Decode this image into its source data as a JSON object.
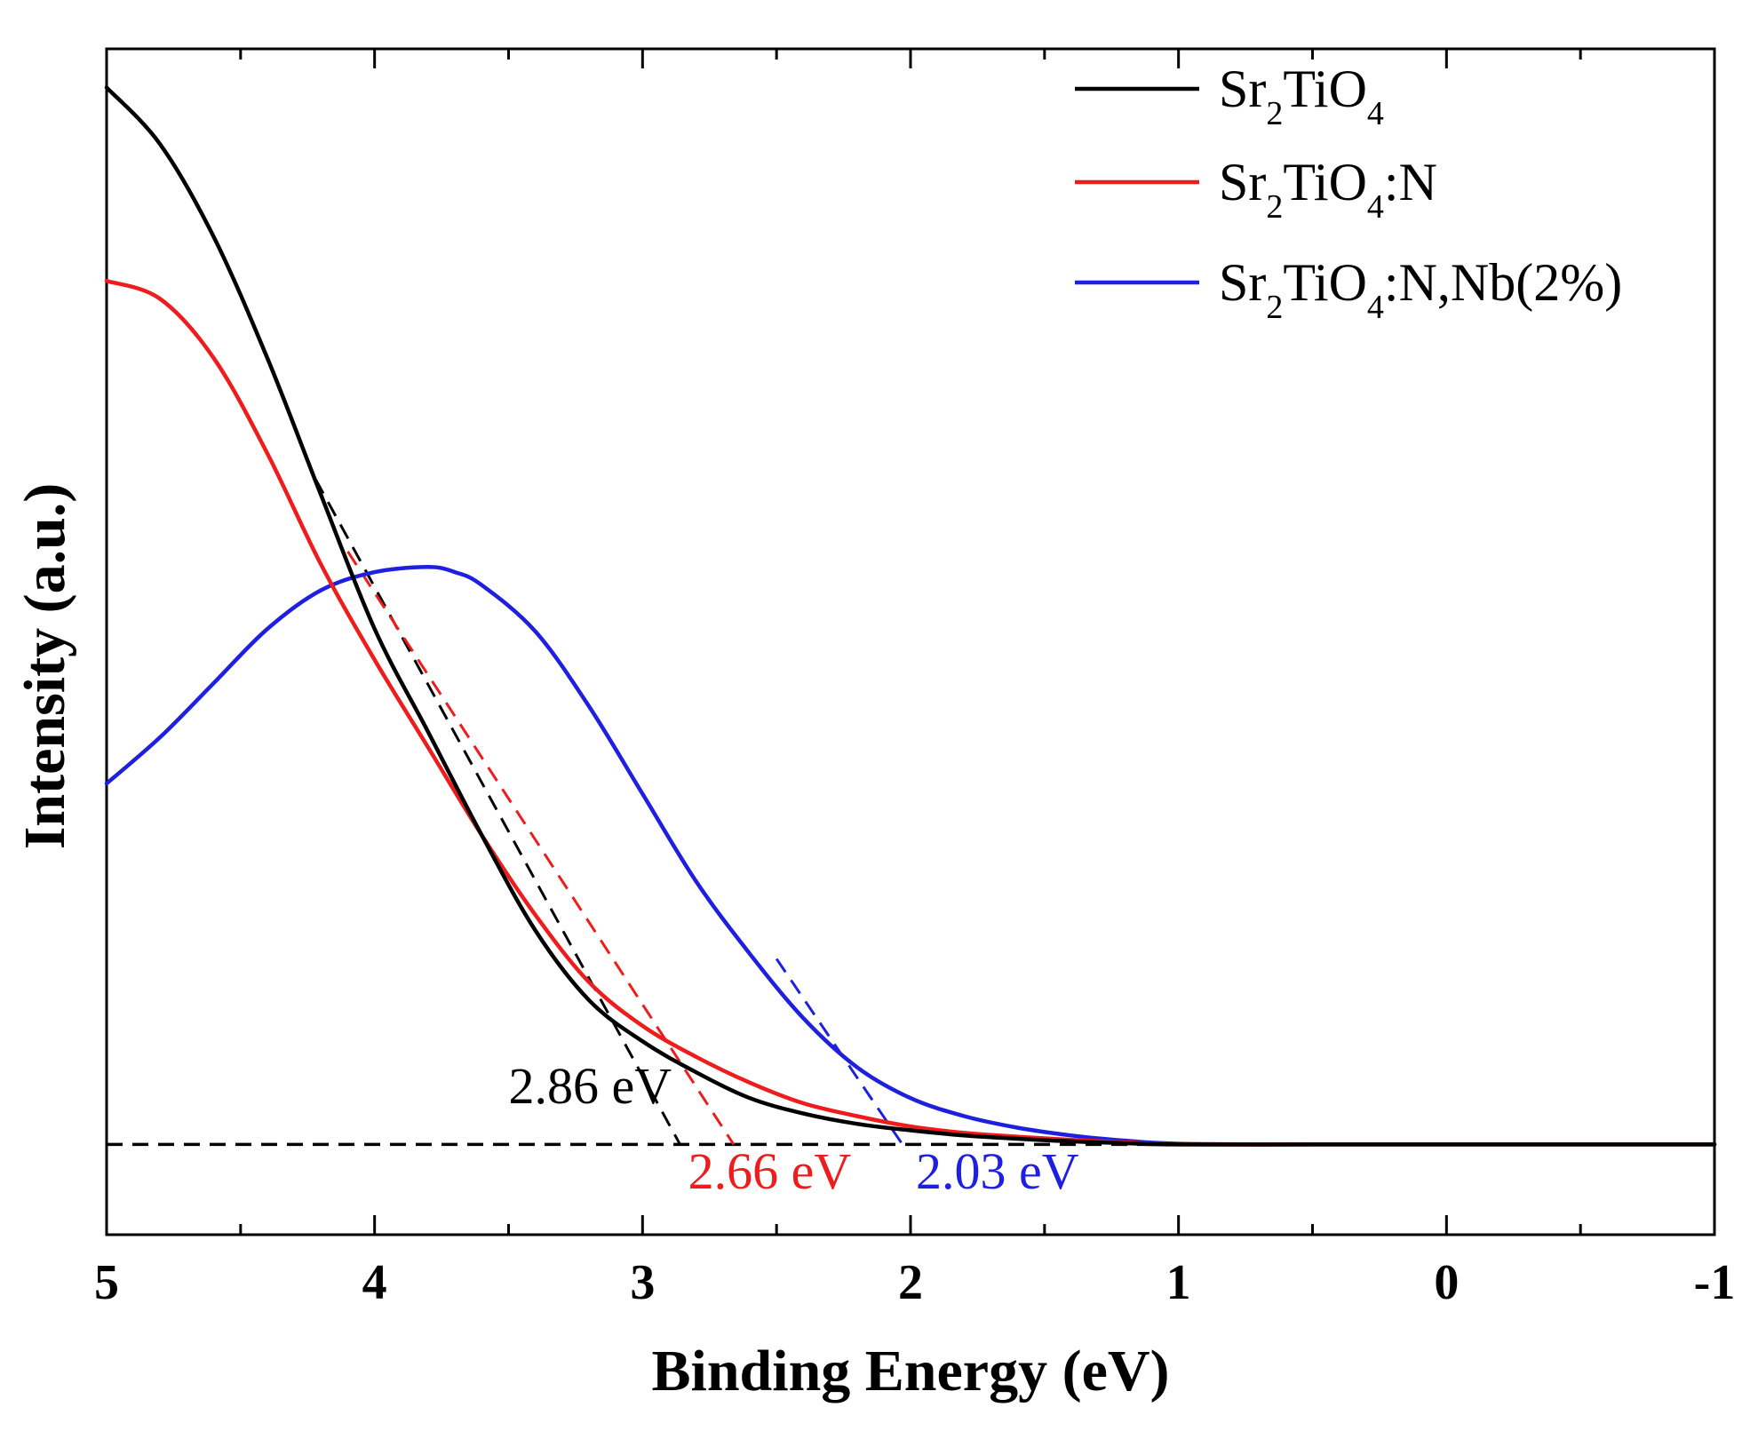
{
  "chart_data": {
    "type": "line",
    "title": "",
    "xlabel": "Binding Energy (eV)",
    "ylabel": "Intensity (a.u.)",
    "xlim": [
      5,
      -1
    ],
    "ylim": [
      -0.35,
      4.25
    ],
    "x_reversed": true,
    "y_ticks_shown": false,
    "grid": false,
    "legend_position": "top-right",
    "x_ticks": [
      5,
      4,
      3,
      2,
      1,
      0,
      -1
    ],
    "x_tick_labels": [
      "5",
      "4",
      "3",
      "2",
      "1",
      "0",
      "-1"
    ],
    "x_minor_ticks": [
      4.5,
      3.5,
      2.5,
      1.5,
      0.5,
      -0.5
    ],
    "series": [
      {
        "name": "Sr2TiO4",
        "legend_parts": [
          {
            "text": "Sr",
            "sub": false
          },
          {
            "text": "2",
            "sub": true
          },
          {
            "text": "TiO",
            "sub": false
          },
          {
            "text": "4",
            "sub": true
          }
        ],
        "color": "#000000",
        "x": [
          5.0,
          4.8,
          4.6,
          4.4,
          4.2,
          4.0,
          3.8,
          3.6,
          3.4,
          3.2,
          3.0,
          2.8,
          2.6,
          2.4,
          2.2,
          2.0,
          1.8,
          1.6,
          1.4,
          1.2,
          1.0,
          0.5,
          0.0,
          -0.5,
          -1.0
        ],
        "y": [
          4.1,
          3.88,
          3.52,
          3.05,
          2.52,
          2.0,
          1.6,
          1.2,
          0.83,
          0.56,
          0.4,
          0.28,
          0.18,
          0.12,
          0.08,
          0.055,
          0.035,
          0.022,
          0.012,
          0.005,
          0.0,
          0.0,
          0.0,
          0.0,
          0.0
        ]
      },
      {
        "name": "Sr2TiO4:N",
        "legend_parts": [
          {
            "text": "Sr",
            "sub": false
          },
          {
            "text": "2",
            "sub": true
          },
          {
            "text": "TiO",
            "sub": false
          },
          {
            "text": "4",
            "sub": true
          },
          {
            "text": ":N",
            "sub": false
          }
        ],
        "color": "#ee1c1c",
        "x": [
          5.0,
          4.8,
          4.6,
          4.4,
          4.2,
          4.0,
          3.8,
          3.6,
          3.4,
          3.2,
          3.0,
          2.8,
          2.6,
          2.4,
          2.2,
          2.0,
          1.8,
          1.6,
          1.4,
          1.2,
          1.0,
          0.5,
          0.0,
          -0.5,
          -1.0
        ],
        "y": [
          3.35,
          3.28,
          3.05,
          2.68,
          2.25,
          1.88,
          1.54,
          1.2,
          0.89,
          0.63,
          0.46,
          0.34,
          0.24,
          0.16,
          0.11,
          0.07,
          0.045,
          0.03,
          0.018,
          0.008,
          0.0,
          0.0,
          0.0,
          0.0,
          0.0
        ]
      },
      {
        "name": "Sr2TiO4:N,Nb(2%)",
        "legend_parts": [
          {
            "text": "Sr",
            "sub": false
          },
          {
            "text": "2",
            "sub": true
          },
          {
            "text": "TiO",
            "sub": false
          },
          {
            "text": "4",
            "sub": true
          },
          {
            "text": ":N,Nb(2%)",
            "sub": false
          }
        ],
        "color": "#1f1fe0",
        "x": [
          5.0,
          4.8,
          4.6,
          4.4,
          4.2,
          4.0,
          3.8,
          3.7,
          3.6,
          3.4,
          3.2,
          3.0,
          2.8,
          2.6,
          2.4,
          2.2,
          2.0,
          1.8,
          1.6,
          1.4,
          1.2,
          1.0,
          0.5,
          0.0,
          -0.5,
          -1.0
        ],
        "y": [
          1.4,
          1.58,
          1.79,
          2.0,
          2.15,
          2.22,
          2.24,
          2.22,
          2.17,
          1.99,
          1.7,
          1.36,
          1.02,
          0.74,
          0.49,
          0.3,
          0.18,
          0.11,
          0.065,
          0.035,
          0.015,
          0.003,
          0.0,
          0.0,
          0.0,
          0.0
        ]
      }
    ],
    "tangent_lines": [
      {
        "series": "Sr2TiO4",
        "color": "#000000",
        "x": [
          4.22,
          2.86
        ],
        "y": [
          2.58,
          0.0
        ]
      },
      {
        "series": "Sr2TiO4:N",
        "color": "#ee1c1c",
        "x": [
          4.1,
          2.66
        ],
        "y": [
          2.3,
          0.0
        ]
      },
      {
        "series": "Sr2TiO4:N,Nb(2%)",
        "color": "#1f1fe0",
        "x": [
          2.5,
          2.03
        ],
        "y": [
          0.72,
          0.0
        ]
      }
    ],
    "baseline": {
      "color": "#000000",
      "x": [
        5.0,
        -1.0
      ],
      "y": [
        0.0,
        0.0
      ]
    },
    "annotations": [
      {
        "text": "2.86 eV",
        "color": "#000000",
        "x": 3.5,
        "y": 0.16
      },
      {
        "text": "2.66 eV",
        "color": "#ee1c1c",
        "x": 2.83,
        "y": -0.17
      },
      {
        "text": "2.03 eV",
        "color": "#1f1fe0",
        "x": 1.98,
        "y": -0.17
      }
    ]
  }
}
